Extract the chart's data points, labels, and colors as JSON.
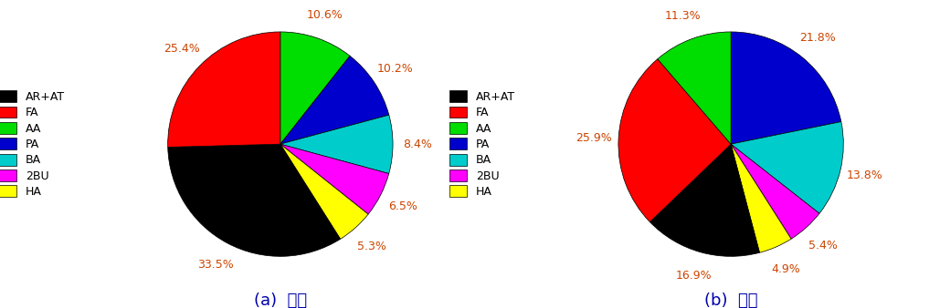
{
  "chart_a": {
    "label": "(a)  실내",
    "values": [
      10.6,
      10.2,
      8.4,
      6.5,
      5.3,
      33.5,
      25.4
    ],
    "colors": [
      "#00dd00",
      "#0000cc",
      "#00cccc",
      "#ff00ff",
      "#ffff00",
      "#000000",
      "#ff0000"
    ],
    "pct_labels": [
      "10.6%",
      "10.2%",
      "8.4%",
      "6.5%",
      "5.3%",
      "33.5%",
      "25.4%"
    ],
    "startangle": 90
  },
  "chart_b": {
    "label": "(b)  실외",
    "values": [
      21.8,
      13.8,
      5.4,
      4.9,
      16.9,
      25.9,
      11.3
    ],
    "colors": [
      "#0000cc",
      "#00cccc",
      "#ff00ff",
      "#ffff00",
      "#000000",
      "#ff0000",
      "#00dd00"
    ],
    "pct_labels": [
      "21.8%",
      "13.8%",
      "5.4%",
      "4.9%",
      "16.9%",
      "25.9%",
      "11.3%"
    ],
    "startangle": 90
  },
  "legend_labels": [
    "AR+AT",
    "FA",
    "AA",
    "PA",
    "BA",
    "2BU",
    "HA"
  ],
  "legend_colors": [
    "#000000",
    "#ff0000",
    "#00dd00",
    "#0000cc",
    "#00cccc",
    "#ff00ff",
    "#ffff00"
  ],
  "label_color": "#cc4400",
  "label_fontsize": 9,
  "subtitle_fontsize": 13,
  "legend_fontsize": 9
}
